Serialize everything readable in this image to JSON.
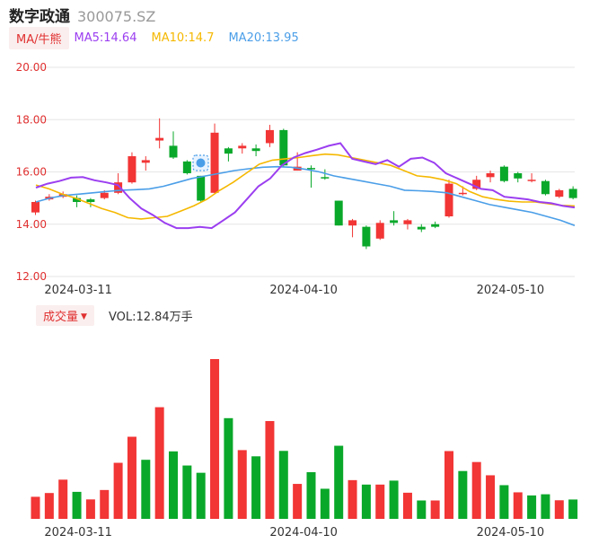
{
  "header": {
    "name": "数字政通",
    "code": "300075.SZ"
  },
  "ma_legend": {
    "toggle_label": "MA/牛熊",
    "ma5": "MA5:14.64",
    "ma10": "MA10:14.7",
    "ma20": "MA20:13.95",
    "colors": {
      "ma5": "#9b3ef0",
      "ma10": "#f5b800",
      "ma20": "#4a9ee8"
    }
  },
  "volume_legend": {
    "toggle_label": "成交量",
    "text": "VOL:12.84万手"
  },
  "colors": {
    "up": "#f23535",
    "down": "#0aa82a",
    "grid": "#e6e6e6"
  },
  "chart_data": [
    {
      "type": "candlestick",
      "ylim": [
        12,
        20
      ],
      "yticks": [
        "20.00",
        "18.00",
        "16.00",
        "14.00",
        "12.00"
      ],
      "ytick_values": [
        20,
        18,
        16,
        14,
        12
      ],
      "xtick_labels": [
        {
          "label": "2024-03-11",
          "index": 2
        },
        {
          "label": "2024-04-10",
          "index": 19
        },
        {
          "label": "2024-05-10",
          "index": 34
        }
      ],
      "candles": [
        {
          "o": 14.45,
          "c": 14.85,
          "h": 14.9,
          "l": 14.35
        },
        {
          "o": 14.95,
          "c": 15.05,
          "h": 15.15,
          "l": 14.9
        },
        {
          "o": 15.05,
          "c": 15.15,
          "h": 15.25,
          "l": 15.0
        },
        {
          "o": 15.0,
          "c": 14.85,
          "h": 15.1,
          "l": 14.65
        },
        {
          "o": 14.95,
          "c": 14.85,
          "h": 15.0,
          "l": 14.65
        },
        {
          "o": 15.0,
          "c": 15.2,
          "h": 15.3,
          "l": 14.95
        },
        {
          "o": 15.2,
          "c": 15.6,
          "h": 15.95,
          "l": 15.15
        },
        {
          "o": 15.6,
          "c": 16.6,
          "h": 16.75,
          "l": 15.55
        },
        {
          "o": 16.35,
          "c": 16.45,
          "h": 16.6,
          "l": 16.05
        },
        {
          "o": 17.2,
          "c": 17.3,
          "h": 18.05,
          "l": 16.9
        },
        {
          "o": 17.0,
          "c": 16.55,
          "h": 17.55,
          "l": 16.5
        },
        {
          "o": 16.4,
          "c": 15.95,
          "h": 16.45,
          "l": 15.9
        },
        {
          "o": 15.85,
          "c": 14.9,
          "h": 15.85,
          "l": 14.85
        },
        {
          "o": 15.2,
          "c": 17.5,
          "h": 17.85,
          "l": 15.15
        },
        {
          "o": 16.9,
          "c": 16.7,
          "h": 16.95,
          "l": 16.4
        },
        {
          "o": 16.9,
          "c": 17.0,
          "h": 17.1,
          "l": 16.7
        },
        {
          "o": 16.9,
          "c": 16.8,
          "h": 17.05,
          "l": 16.6
        },
        {
          "o": 17.1,
          "c": 17.6,
          "h": 17.8,
          "l": 16.95
        },
        {
          "o": 17.6,
          "c": 16.25,
          "h": 17.65,
          "l": 16.2
        },
        {
          "o": 16.05,
          "c": 16.2,
          "h": 16.75,
          "l": 16.05
        },
        {
          "o": 16.15,
          "c": 16.1,
          "h": 16.25,
          "l": 15.4
        },
        {
          "o": 15.8,
          "c": 15.75,
          "h": 16.1,
          "l": 15.7
        },
        {
          "o": 14.9,
          "c": 13.95,
          "h": 14.9,
          "l": 13.95
        },
        {
          "o": 13.95,
          "c": 14.15,
          "h": 14.2,
          "l": 13.5
        },
        {
          "o": 13.9,
          "c": 13.15,
          "h": 13.95,
          "l": 13.05
        },
        {
          "o": 13.45,
          "c": 14.05,
          "h": 14.15,
          "l": 13.4
        },
        {
          "o": 14.15,
          "c": 14.05,
          "h": 14.5,
          "l": 13.95
        },
        {
          "o": 14.0,
          "c": 14.15,
          "h": 14.2,
          "l": 13.8
        },
        {
          "o": 13.9,
          "c": 13.8,
          "h": 14.0,
          "l": 13.7
        },
        {
          "o": 14.0,
          "c": 13.9,
          "h": 14.1,
          "l": 13.85
        },
        {
          "o": 14.3,
          "c": 15.55,
          "h": 15.7,
          "l": 14.25
        },
        {
          "o": 15.2,
          "c": 15.2,
          "h": 15.45,
          "l": 15.1
        },
        {
          "o": 15.35,
          "c": 15.7,
          "h": 15.85,
          "l": 15.3
        },
        {
          "o": 15.8,
          "c": 15.95,
          "h": 16.05,
          "l": 15.6
        },
        {
          "o": 16.2,
          "c": 15.65,
          "h": 16.25,
          "l": 15.6
        },
        {
          "o": 15.95,
          "c": 15.75,
          "h": 16.0,
          "l": 15.6
        },
        {
          "o": 15.65,
          "c": 15.7,
          "h": 15.95,
          "l": 15.6
        },
        {
          "o": 15.65,
          "c": 15.15,
          "h": 15.7,
          "l": 15.1
        },
        {
          "o": 15.05,
          "c": 15.3,
          "h": 15.35,
          "l": 15.0
        },
        {
          "o": 15.35,
          "c": 15.0,
          "h": 15.45,
          "l": 14.95
        }
      ],
      "ma_values": {
        "ma5": [
          15.4,
          15.55,
          15.65,
          15.78,
          15.8,
          15.68,
          15.6,
          15.5,
          15.0,
          14.6,
          14.35,
          14.05,
          13.85,
          13.85,
          13.9,
          13.85,
          14.15,
          14.45,
          14.95,
          15.45,
          15.75,
          16.25,
          16.55,
          16.72,
          16.85,
          17.0,
          17.1,
          16.5,
          16.4,
          16.3,
          16.45,
          16.2,
          16.5,
          16.55,
          16.35,
          15.95,
          15.75,
          15.55,
          15.35,
          15.3,
          15.05,
          15.0,
          14.95,
          14.85,
          14.8,
          14.7,
          14.64
        ],
        "ma10": [
          15.5,
          15.35,
          15.15,
          15.0,
          14.8,
          14.6,
          14.45,
          14.25,
          14.2,
          14.25,
          14.3,
          14.5,
          14.7,
          14.95,
          15.3,
          15.6,
          15.95,
          16.3,
          16.45,
          16.5,
          16.55,
          16.62,
          16.68,
          16.65,
          16.55,
          16.45,
          16.35,
          16.25,
          16.05,
          15.85,
          15.8,
          15.7,
          15.55,
          15.25,
          15.05,
          14.95,
          14.88,
          14.85,
          14.85,
          14.78,
          14.72,
          14.7
        ],
        "ma20": [
          14.85,
          15.0,
          15.1,
          15.15,
          15.2,
          15.25,
          15.3,
          15.32,
          15.35,
          15.45,
          15.6,
          15.75,
          15.85,
          15.95,
          16.05,
          16.12,
          16.18,
          16.2,
          16.18,
          16.1,
          16.0,
          15.85,
          15.75,
          15.65,
          15.55,
          15.45,
          15.3,
          15.28,
          15.25,
          15.2,
          15.05,
          14.9,
          14.75,
          14.65,
          14.55,
          14.45,
          14.3,
          14.15,
          13.95
        ]
      }
    },
    {
      "type": "bar",
      "xtick_labels": [
        {
          "label": "2024-03-11",
          "index": 2
        },
        {
          "label": "2024-04-10",
          "index": 19
        },
        {
          "label": "2024-05-10",
          "index": 34
        }
      ],
      "volumes": [
        22.8,
        26.7,
        40.5,
        27.9,
        20.1,
        29.8,
        57.9,
        84.8,
        61.0,
        115.3,
        69.7,
        55.1,
        47.6,
        165.0,
        104.0,
        71.0,
        64.6,
        101.0,
        70.2,
        36.1,
        48.2,
        31.1,
        75.5,
        40.0,
        35.4,
        35.4,
        39.5,
        27.0,
        19.0,
        19.0,
        70.0,
        49.4,
        58.7,
        45.0,
        34.8,
        27.4,
        24.2,
        25.4,
        19.2,
        20.0
      ],
      "up": [
        true,
        true,
        true,
        false,
        true,
        true,
        true,
        true,
        false,
        true,
        false,
        false,
        false,
        true,
        false,
        true,
        false,
        true,
        false,
        true,
        false,
        false,
        false,
        true,
        false,
        true,
        false,
        true,
        false,
        true,
        true,
        false,
        true,
        true,
        false,
        true,
        false,
        false,
        true,
        false
      ]
    }
  ]
}
